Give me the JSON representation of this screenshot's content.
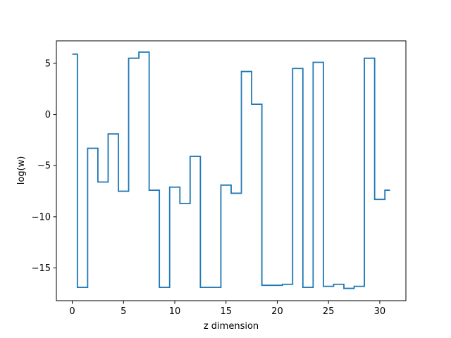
{
  "chart_data": {
    "type": "line",
    "drawstyle": "steps-mid",
    "title": "",
    "xlabel": "z dimension",
    "ylabel": "log(w)",
    "xlim": [
      -1.55,
      32.55
    ],
    "ylim": [
      -18.2,
      7.2
    ],
    "xticks": [
      0,
      5,
      10,
      15,
      20,
      25,
      30
    ],
    "yticks": [
      -15,
      -10,
      -5,
      0,
      5
    ],
    "xtick_labels": [
      "0",
      "5",
      "10",
      "15",
      "20",
      "25",
      "30"
    ],
    "ytick_labels": [
      "−15",
      "−10",
      "−5",
      "0",
      "5"
    ],
    "grid": false,
    "series": [
      {
        "color": "#1f77b4",
        "x": [
          0,
          1,
          2,
          3,
          4,
          5,
          6,
          7,
          8,
          9,
          10,
          11,
          12,
          13,
          14,
          15,
          16,
          17,
          18,
          19,
          20,
          21,
          22,
          23,
          24,
          25,
          26,
          27,
          28,
          29,
          30,
          31
        ],
        "y": [
          5.9,
          -16.9,
          -3.3,
          -6.6,
          -1.9,
          -7.5,
          5.5,
          6.1,
          -7.4,
          -16.9,
          -7.1,
          -8.7,
          -4.1,
          -16.9,
          -16.9,
          -6.9,
          -7.7,
          4.2,
          1.0,
          -16.7,
          -16.7,
          -16.6,
          4.5,
          -16.9,
          5.1,
          -16.8,
          -16.6,
          -17.0,
          -16.8,
          5.5,
          -8.3,
          -7.4
        ]
      }
    ]
  }
}
